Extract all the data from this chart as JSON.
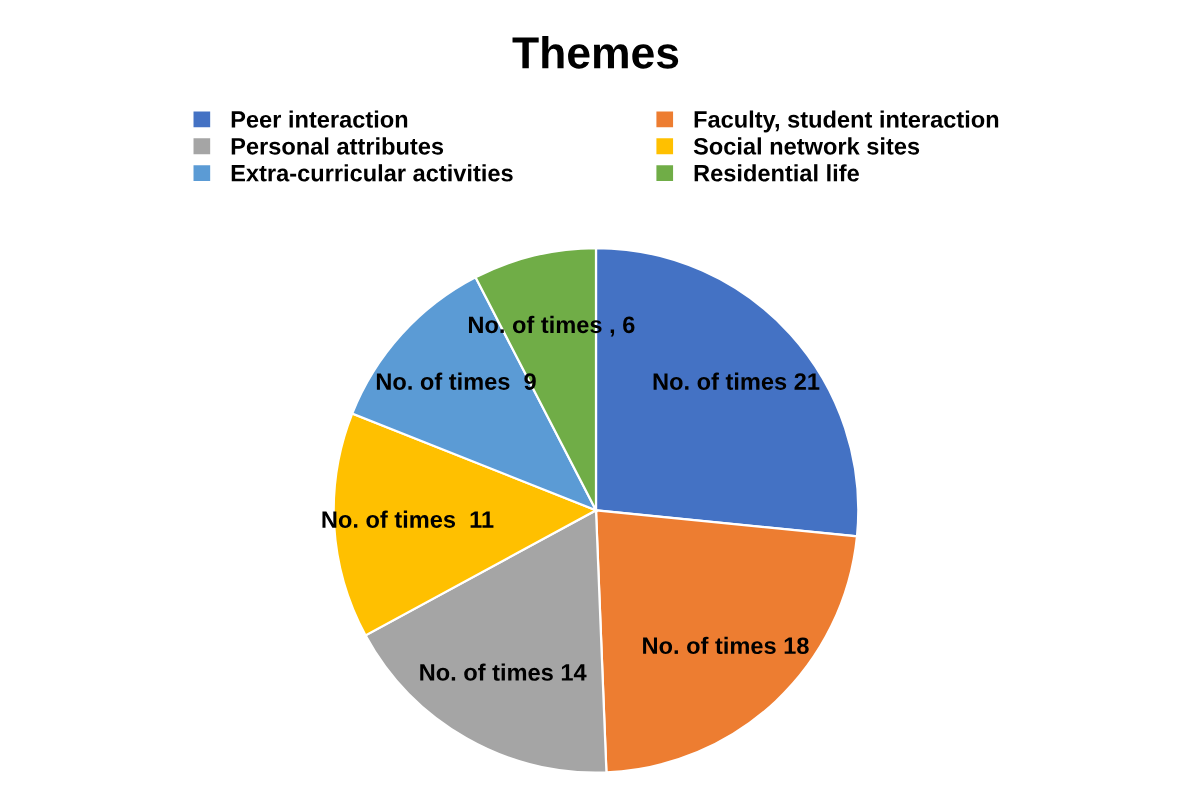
{
  "chart_data": {
    "type": "pie",
    "title": "Themes",
    "categories": [
      "Peer interaction",
      "Faculty, student interaction",
      "Personal attributes",
      "Social network sites",
      "Extra-curricular activities",
      "Residential life"
    ],
    "values": [
      21,
      18,
      14,
      11,
      9,
      6
    ],
    "colors": [
      "#4472c4",
      "#ed7d31",
      "#a5a5a5",
      "#ffc000",
      "#5b9bd5",
      "#70ad47"
    ],
    "value_labels": [
      "No. of times 21",
      "No. of times 18",
      "No. of times 14",
      "No. of times  11",
      "No. of times  9",
      "No. of times , 6"
    ],
    "legend": "top"
  }
}
